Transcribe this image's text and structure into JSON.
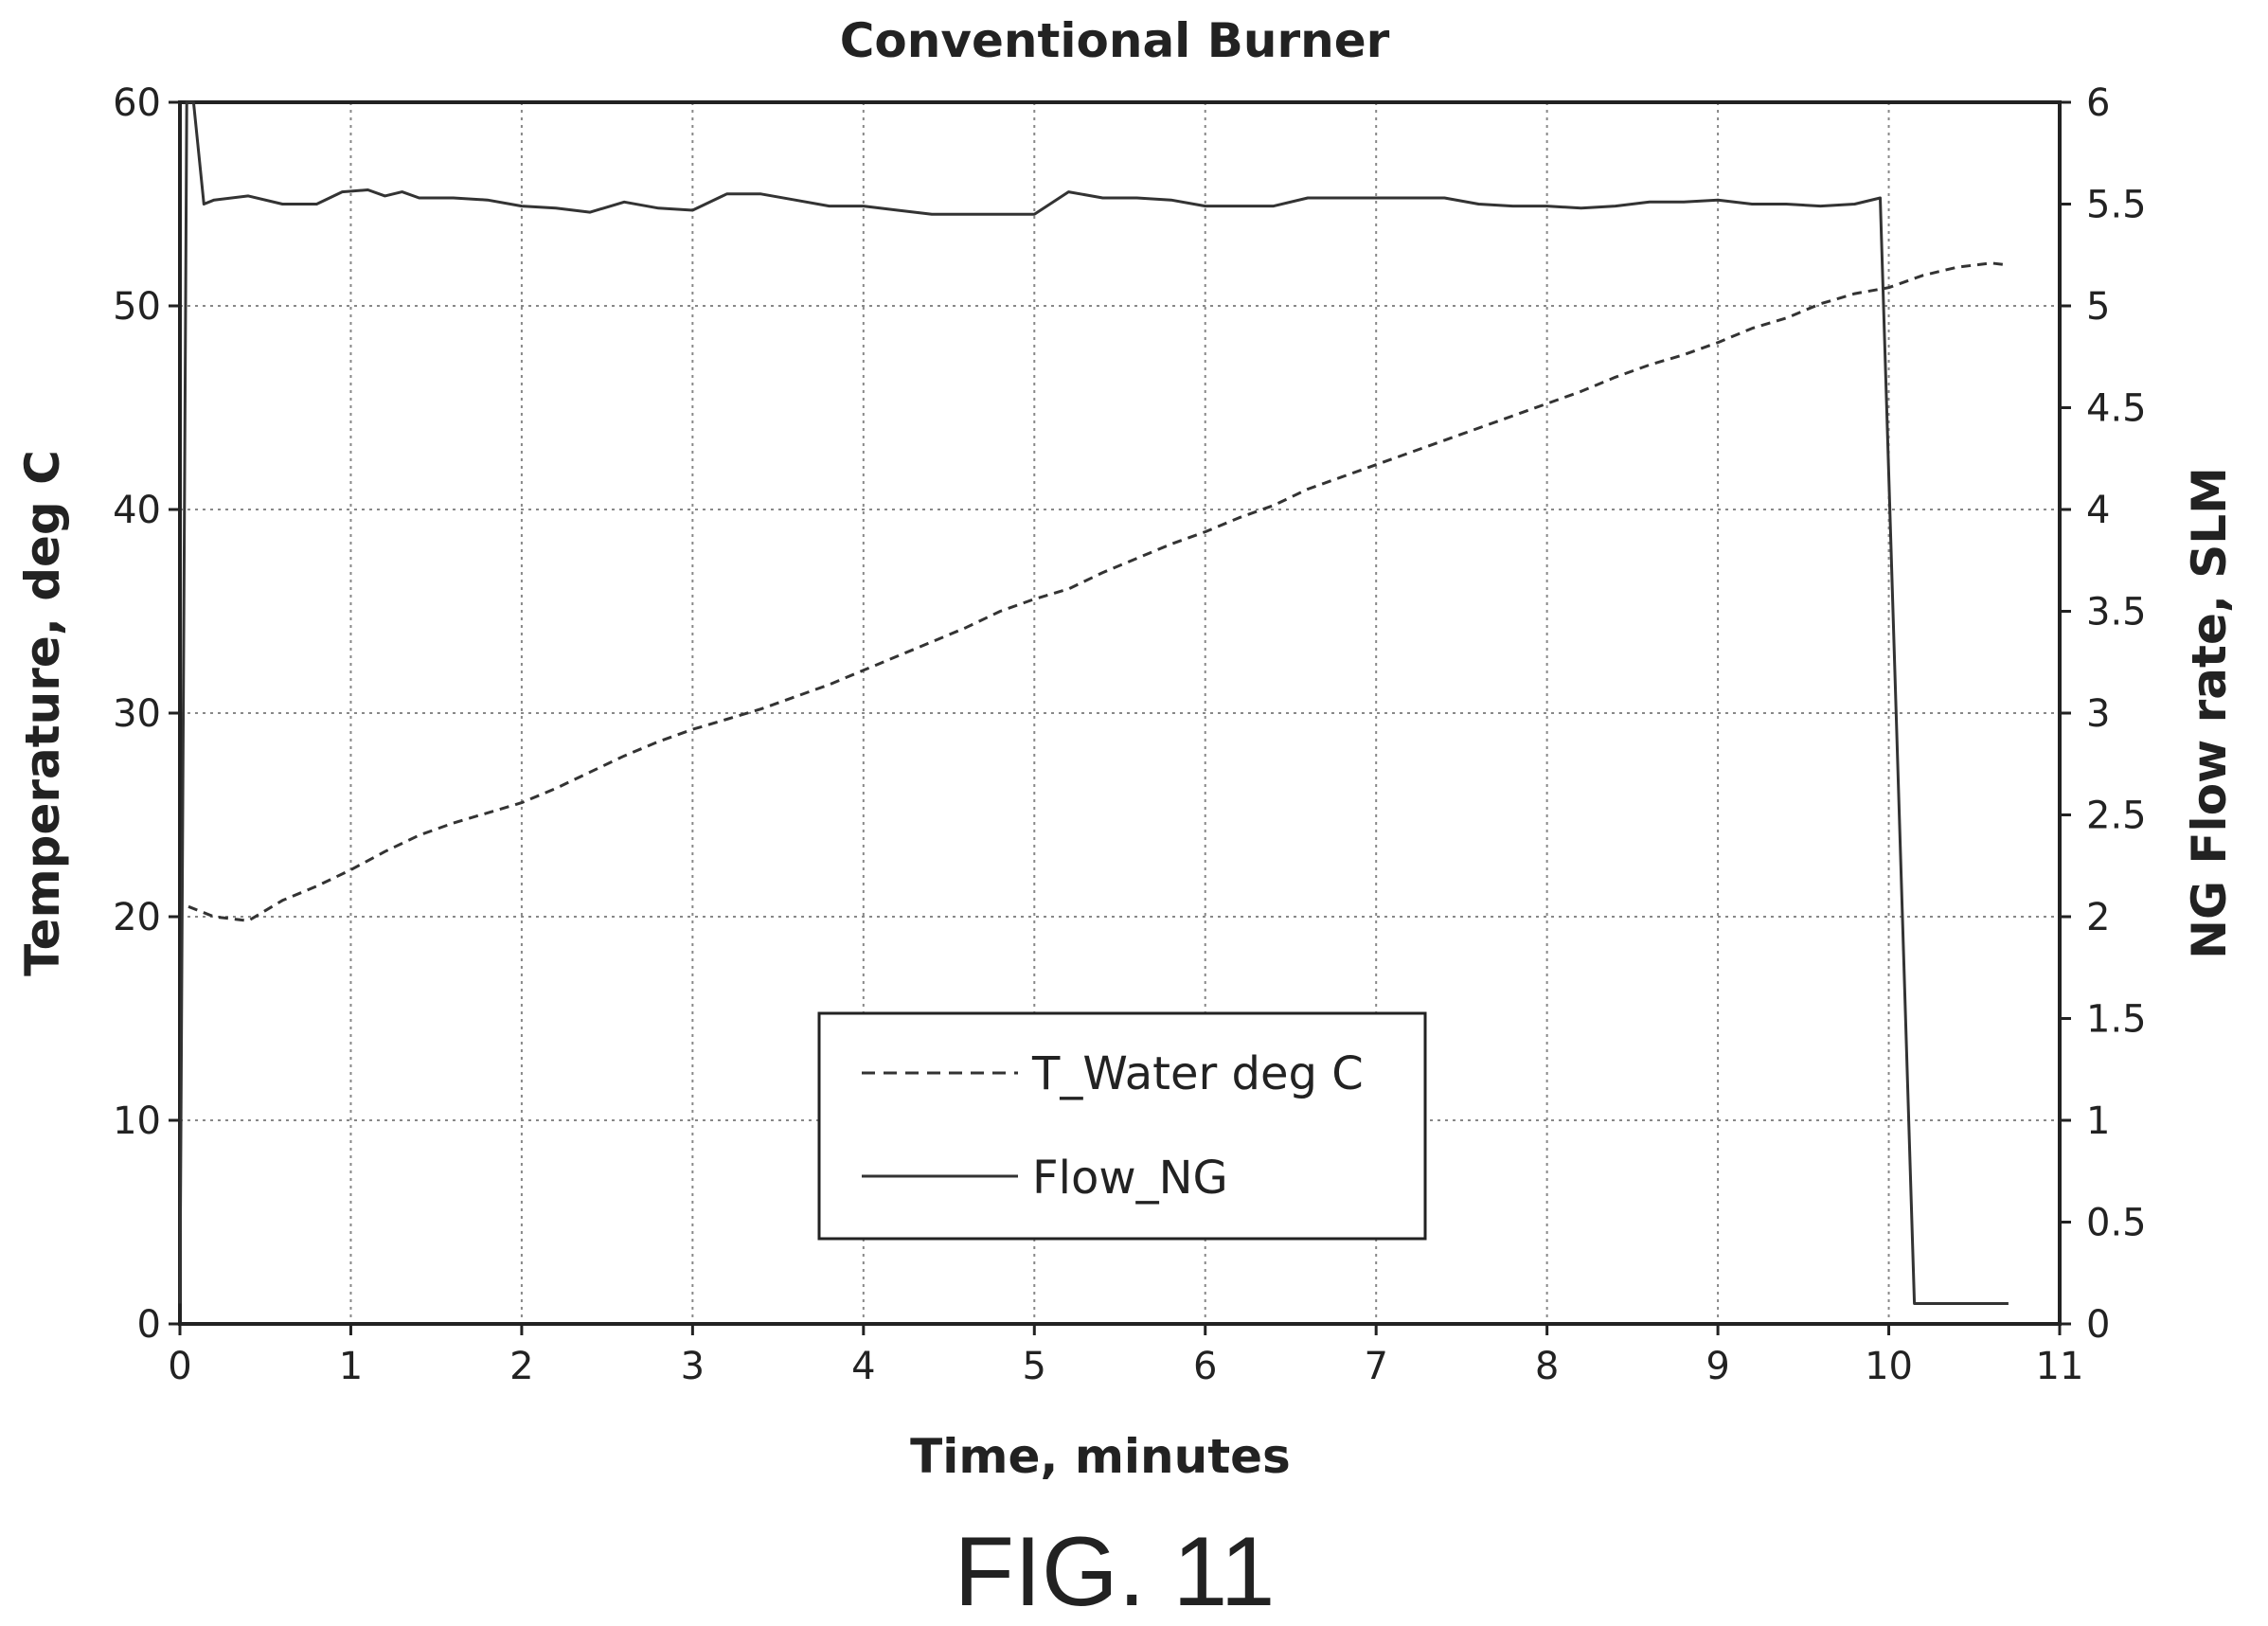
{
  "figure_caption": "FIG. 11",
  "chart_data": {
    "type": "line",
    "title": "Conventional Burner",
    "xlabel": "Time, minutes",
    "ylabel_left": "Temperature, deg C",
    "ylabel_right": "NG Flow rate, SLM",
    "xlim": [
      0,
      11
    ],
    "ylim_left": [
      0,
      60
    ],
    "ylim_right": [
      0,
      6
    ],
    "xticks": [
      "0",
      "1",
      "2",
      "3",
      "4",
      "5",
      "6",
      "7",
      "8",
      "9",
      "10",
      "11"
    ],
    "yticks_left": [
      "0",
      "10",
      "20",
      "30",
      "40",
      "50",
      "60"
    ],
    "yticks_right": [
      "0",
      "0.5",
      "1",
      "1.5",
      "2",
      "2.5",
      "3",
      "3.5",
      "4",
      "4.5",
      "5",
      "5.5",
      "6"
    ],
    "grid": true,
    "legend_position": "lower-center",
    "series": [
      {
        "name": "T_Water deg C",
        "axis": "left",
        "style": "dashed",
        "color": "#333333",
        "x": [
          0.05,
          0.2,
          0.4,
          0.6,
          0.8,
          1.0,
          1.2,
          1.4,
          1.6,
          1.8,
          2.0,
          2.2,
          2.4,
          2.6,
          2.8,
          3.0,
          3.2,
          3.4,
          3.6,
          3.8,
          4.0,
          4.2,
          4.4,
          4.6,
          4.8,
          5.0,
          5.2,
          5.4,
          5.6,
          5.8,
          6.0,
          6.2,
          6.4,
          6.6,
          6.8,
          7.0,
          7.2,
          7.4,
          7.6,
          7.8,
          8.0,
          8.2,
          8.4,
          8.6,
          8.8,
          9.0,
          9.2,
          9.4,
          9.6,
          9.8,
          10.0,
          10.2,
          10.4,
          10.6,
          10.7
        ],
        "values": [
          20.5,
          20.0,
          19.8,
          20.8,
          21.5,
          22.3,
          23.2,
          24.0,
          24.6,
          25.1,
          25.6,
          26.3,
          27.1,
          27.9,
          28.6,
          29.2,
          29.7,
          30.2,
          30.8,
          31.4,
          32.1,
          32.8,
          33.5,
          34.2,
          35.0,
          35.6,
          36.1,
          36.9,
          37.6,
          38.3,
          38.9,
          39.6,
          40.2,
          41.0,
          41.6,
          42.2,
          42.8,
          43.4,
          44.0,
          44.6,
          45.2,
          45.8,
          46.5,
          47.1,
          47.6,
          48.2,
          48.9,
          49.4,
          50.1,
          50.6,
          50.9,
          51.5,
          51.9,
          52.1,
          52.0
        ]
      },
      {
        "name": "Flow_NG",
        "axis": "right",
        "style": "solid",
        "color": "#333333",
        "x": [
          0.0,
          0.04,
          0.08,
          0.14,
          0.2,
          0.4,
          0.6,
          0.8,
          0.95,
          1.1,
          1.2,
          1.3,
          1.4,
          1.6,
          1.8,
          2.0,
          2.2,
          2.4,
          2.6,
          2.8,
          3.0,
          3.2,
          3.4,
          3.6,
          3.8,
          4.0,
          4.2,
          4.4,
          4.6,
          4.8,
          5.0,
          5.2,
          5.4,
          5.6,
          5.8,
          6.0,
          6.2,
          6.4,
          6.6,
          6.8,
          7.0,
          7.2,
          7.4,
          7.6,
          7.8,
          8.0,
          8.2,
          8.4,
          8.6,
          8.8,
          9.0,
          9.2,
          9.4,
          9.6,
          9.8,
          9.95,
          10.15,
          10.3,
          10.5,
          10.7
        ],
        "values": [
          0.1,
          6.0,
          6.0,
          5.5,
          5.52,
          5.54,
          5.5,
          5.5,
          5.56,
          5.57,
          5.54,
          5.56,
          5.53,
          5.53,
          5.52,
          5.49,
          5.48,
          5.46,
          5.51,
          5.48,
          5.47,
          5.55,
          5.55,
          5.52,
          5.49,
          5.49,
          5.47,
          5.45,
          5.45,
          5.45,
          5.45,
          5.56,
          5.53,
          5.53,
          5.52,
          5.49,
          5.49,
          5.49,
          5.53,
          5.53,
          5.53,
          5.53,
          5.53,
          5.5,
          5.49,
          5.49,
          5.48,
          5.49,
          5.51,
          5.51,
          5.52,
          5.5,
          5.5,
          5.49,
          5.5,
          5.53,
          0.1,
          0.1,
          0.1,
          0.1
        ]
      }
    ]
  }
}
